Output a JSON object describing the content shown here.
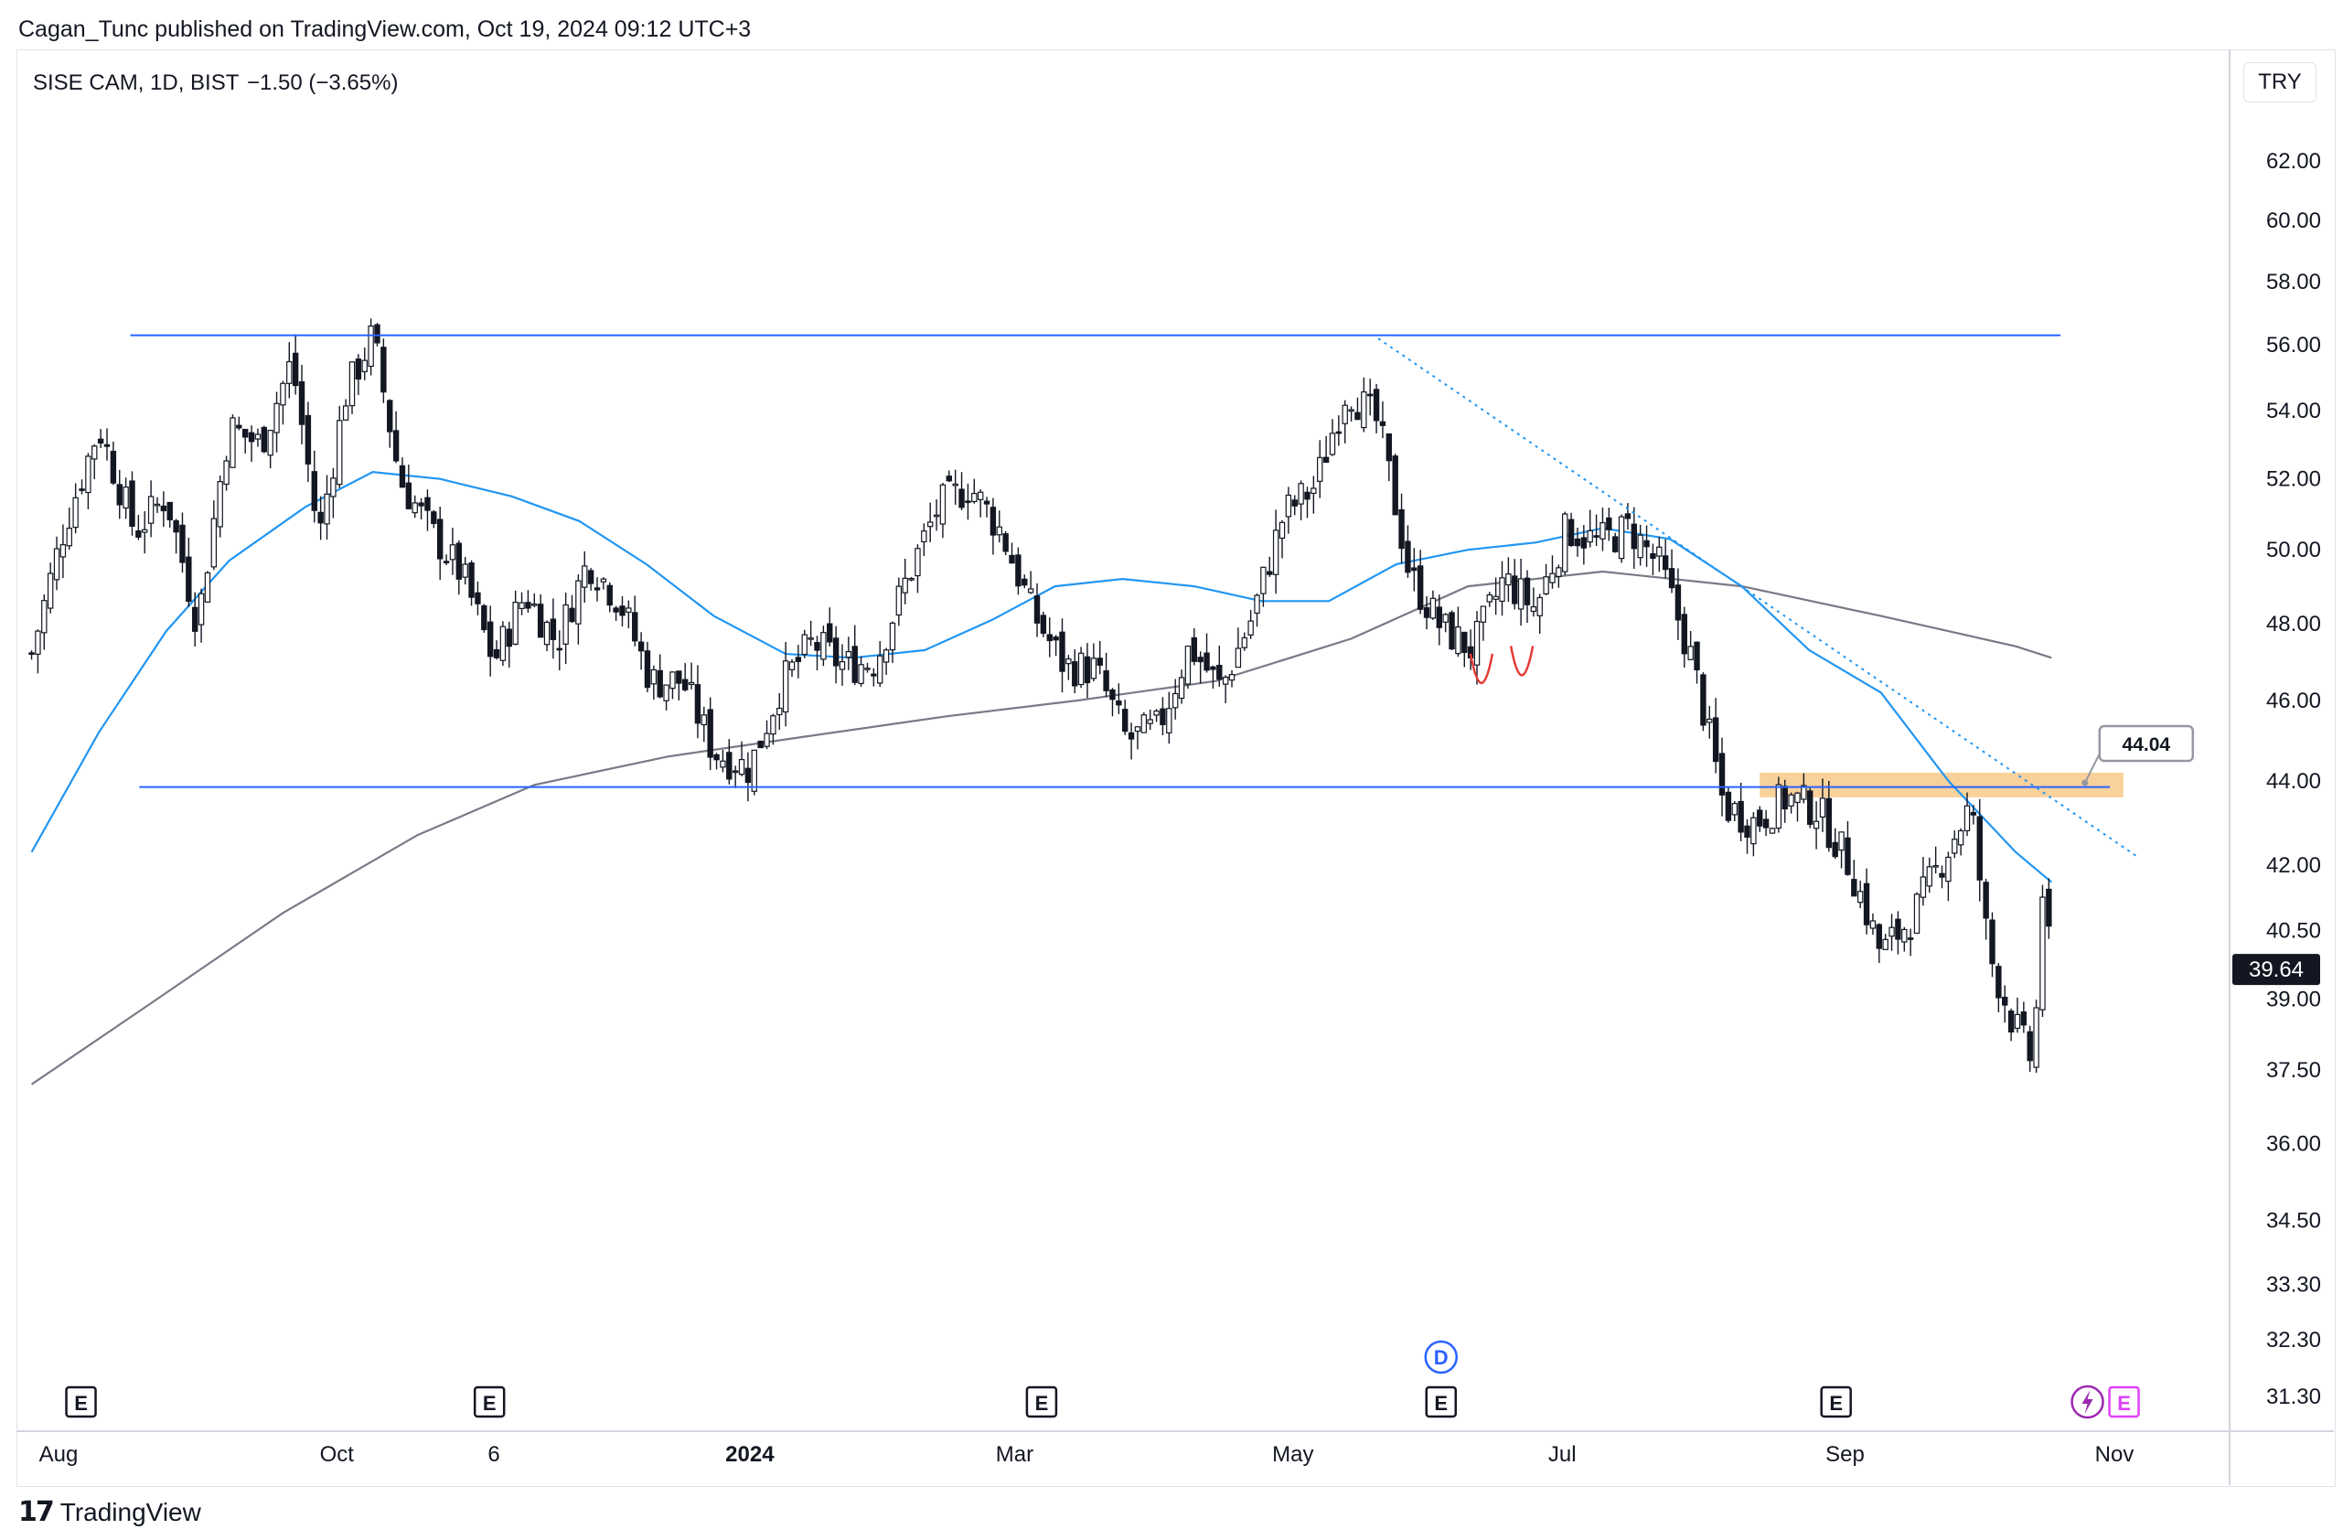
{
  "header": {
    "published_line": "Cagan_Tunc published on TradingView.com, Oct 19, 2024 09:12 UTC+3"
  },
  "chart_data": {
    "type": "candlestick",
    "symbol_line": "SISE CAM, 1D, BIST",
    "change_text": "−1.50 (−3.65%)",
    "currency": "TRY",
    "last_price": "39.64",
    "y_scale": "log",
    "y_ticks": [
      "62.00",
      "60.00",
      "58.00",
      "56.00",
      "54.00",
      "52.00",
      "50.00",
      "48.00",
      "46.00",
      "44.00",
      "42.00",
      "40.50",
      "39.00",
      "37.50",
      "36.00",
      "34.50",
      "33.30",
      "32.30",
      "31.30"
    ],
    "x_ticks": [
      {
        "label": "Aug",
        "date": "2023-08-01",
        "bold": false
      },
      {
        "label": "Oct",
        "date": "2023-10-02",
        "bold": false
      },
      {
        "label": "6",
        "date": "2023-11-06",
        "bold": false
      },
      {
        "label": "2024",
        "date": "2024-01-02",
        "bold": true
      },
      {
        "label": "Mar",
        "date": "2024-03-01",
        "bold": false
      },
      {
        "label": "May",
        "date": "2024-05-02",
        "bold": false
      },
      {
        "label": "Jul",
        "date": "2024-07-01",
        "bold": false
      },
      {
        "label": "Sep",
        "date": "2024-09-02",
        "bold": false
      },
      {
        "label": "Nov",
        "date": "2024-11-01",
        "bold": false
      }
    ],
    "close_path": [
      [
        "2023-07-26",
        47.2
      ],
      [
        "2023-08-02",
        50.5
      ],
      [
        "2023-08-10",
        53.5
      ],
      [
        "2023-08-18",
        50.5
      ],
      [
        "2023-08-25",
        51.5
      ],
      [
        "2023-09-01",
        48.0
      ],
      [
        "2023-09-08",
        53.5
      ],
      [
        "2023-09-15",
        53.0
      ],
      [
        "2023-09-22",
        55.5
      ],
      [
        "2023-09-28",
        50.3
      ],
      [
        "2023-10-04",
        54.5
      ],
      [
        "2023-10-10",
        56.3
      ],
      [
        "2023-10-16",
        52.0
      ],
      [
        "2023-10-23",
        50.5
      ],
      [
        "2023-10-30",
        49.3
      ],
      [
        "2023-11-06",
        47.0
      ],
      [
        "2023-11-13",
        48.8
      ],
      [
        "2023-11-20",
        47.5
      ],
      [
        "2023-11-27",
        49.7
      ],
      [
        "2023-12-04",
        48.6
      ],
      [
        "2023-12-11",
        46.5
      ],
      [
        "2023-12-18",
        46.5
      ],
      [
        "2023-12-25",
        44.7
      ],
      [
        "2024-01-02",
        44.3
      ],
      [
        "2024-01-09",
        46.4
      ],
      [
        "2024-01-16",
        47.5
      ],
      [
        "2024-01-23",
        46.9
      ],
      [
        "2024-01-30",
        47.0
      ],
      [
        "2024-02-06",
        49.2
      ],
      [
        "2024-02-13",
        51.2
      ],
      [
        "2024-02-20",
        51.8
      ],
      [
        "2024-02-27",
        50.5
      ],
      [
        "2024-03-05",
        48.3
      ],
      [
        "2024-03-12",
        46.9
      ],
      [
        "2024-03-19",
        46.8
      ],
      [
        "2024-03-26",
        45.0
      ],
      [
        "2024-04-02",
        45.3
      ],
      [
        "2024-04-09",
        47.4
      ],
      [
        "2024-04-16",
        46.3
      ],
      [
        "2024-04-23",
        48.2
      ],
      [
        "2024-04-30",
        51.0
      ],
      [
        "2024-05-07",
        51.8
      ],
      [
        "2024-05-14",
        54.7
      ],
      [
        "2024-05-21",
        53.6
      ],
      [
        "2024-05-28",
        49.3
      ],
      [
        "2024-06-04",
        47.9
      ],
      [
        "2024-06-11",
        47.3
      ],
      [
        "2024-06-18",
        49.2
      ],
      [
        "2024-06-25",
        48.4
      ],
      [
        "2024-07-02",
        50.6
      ],
      [
        "2024-07-09",
        50.2
      ],
      [
        "2024-07-16",
        50.6
      ],
      [
        "2024-07-23",
        49.5
      ],
      [
        "2024-07-30",
        47.0
      ],
      [
        "2024-08-06",
        43.4
      ],
      [
        "2024-08-13",
        43.0
      ],
      [
        "2024-08-20",
        43.6
      ],
      [
        "2024-08-27",
        43.3
      ],
      [
        "2024-09-03",
        42.0
      ],
      [
        "2024-09-10",
        40.0
      ],
      [
        "2024-09-17",
        40.8
      ],
      [
        "2024-09-24",
        42.2
      ],
      [
        "2024-09-30",
        43.4
      ],
      [
        "2024-10-04",
        40.0
      ],
      [
        "2024-10-09",
        38.6
      ],
      [
        "2024-10-14",
        37.6
      ],
      [
        "2024-10-16",
        41.4
      ],
      [
        "2024-10-18",
        39.64
      ]
    ],
    "ma_fast": {
      "color": "#2196f3",
      "points": [
        [
          "2023-07-26",
          42.3
        ],
        [
          "2023-08-10",
          45.2
        ],
        [
          "2023-08-25",
          47.8
        ],
        [
          "2023-09-08",
          49.7
        ],
        [
          "2023-09-25",
          51.2
        ],
        [
          "2023-10-10",
          52.2
        ],
        [
          "2023-10-25",
          52.0
        ],
        [
          "2023-11-10",
          51.5
        ],
        [
          "2023-11-25",
          50.8
        ],
        [
          "2023-12-10",
          49.6
        ],
        [
          "2023-12-25",
          48.2
        ],
        [
          "2024-01-10",
          47.2
        ],
        [
          "2024-01-25",
          47.1
        ],
        [
          "2024-02-10",
          47.3
        ],
        [
          "2024-02-25",
          48.1
        ],
        [
          "2024-03-10",
          49.0
        ],
        [
          "2024-03-25",
          49.2
        ],
        [
          "2024-04-10",
          49.0
        ],
        [
          "2024-04-25",
          48.6
        ],
        [
          "2024-05-10",
          48.6
        ],
        [
          "2024-05-25",
          49.6
        ],
        [
          "2024-06-10",
          50.0
        ],
        [
          "2024-06-25",
          50.2
        ],
        [
          "2024-07-10",
          50.6
        ],
        [
          "2024-07-25",
          50.3
        ],
        [
          "2024-08-10",
          49.0
        ],
        [
          "2024-08-25",
          47.3
        ],
        [
          "2024-09-10",
          46.2
        ],
        [
          "2024-09-25",
          44.0
        ],
        [
          "2024-10-10",
          42.3
        ],
        [
          "2024-10-18",
          41.6
        ]
      ]
    },
    "ma_slow": {
      "color": "#787b86",
      "points": [
        [
          "2023-07-26",
          37.2
        ],
        [
          "2023-08-20",
          38.8
        ],
        [
          "2023-09-20",
          40.9
        ],
        [
          "2023-10-20",
          42.7
        ],
        [
          "2023-11-15",
          43.9
        ],
        [
          "2023-12-15",
          44.6
        ],
        [
          "2024-01-15",
          45.1
        ],
        [
          "2024-02-15",
          45.6
        ],
        [
          "2024-03-15",
          46.0
        ],
        [
          "2024-04-15",
          46.5
        ],
        [
          "2024-05-15",
          47.6
        ],
        [
          "2024-06-10",
          49.0
        ],
        [
          "2024-07-10",
          49.4
        ],
        [
          "2024-08-10",
          49.0
        ],
        [
          "2024-09-10",
          48.2
        ],
        [
          "2024-10-10",
          47.4
        ],
        [
          "2024-10-18",
          47.1
        ]
      ]
    },
    "annotations": {
      "resistance": {
        "value": 56.3,
        "from": "2023-08-17",
        "to": "2024-10-20",
        "color": "#2962ff"
      },
      "support": {
        "value": 43.85,
        "from": "2023-08-19",
        "to": "2024-10-31",
        "color": "#2962ff"
      },
      "trendline": {
        "from": [
          "2024-05-21",
          56.2
        ],
        "to": [
          "2024-11-06",
          42.2
        ],
        "style": "dotted",
        "color": "#2196f3"
      },
      "zone": {
        "from": "2024-08-14",
        "to": "2024-11-03",
        "low": 43.6,
        "high": 44.2,
        "color": "#f5c27a"
      },
      "price_label": "44.04",
      "bottoms": [
        [
          "2024-06-13",
          46.4
        ],
        [
          "2024-06-22",
          46.6
        ]
      ]
    },
    "event_markers": [
      {
        "date": "2023-08-06",
        "type": "E"
      },
      {
        "date": "2023-11-05",
        "type": "E"
      },
      {
        "date": "2024-03-07",
        "type": "E"
      },
      {
        "date": "2024-06-04",
        "type": "E"
      },
      {
        "date": "2024-06-04",
        "type": "D"
      },
      {
        "date": "2024-08-31",
        "type": "E"
      },
      {
        "date": "2024-10-26",
        "type": "flash"
      },
      {
        "date": "2024-10-26",
        "type": "E"
      }
    ]
  },
  "footer": {
    "brand": "TradingView"
  }
}
